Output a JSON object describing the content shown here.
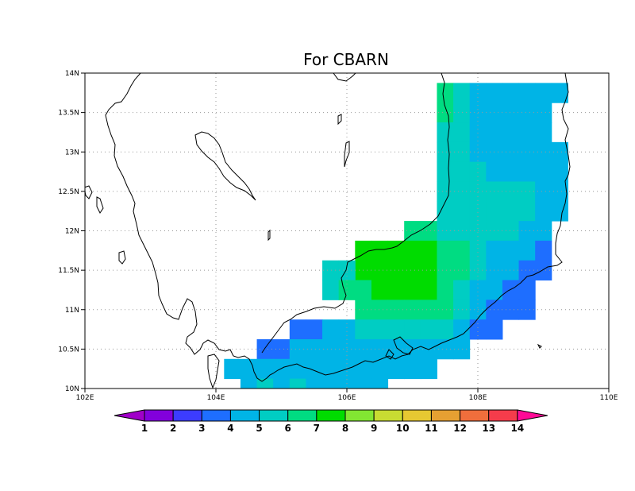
{
  "title": "For CBARN",
  "map": {
    "lon_range": [
      102,
      110
    ],
    "lat_range": [
      10,
      14
    ],
    "x_ticks": [
      {
        "value": 102,
        "label": "102E"
      },
      {
        "value": 104,
        "label": "104E"
      },
      {
        "value": 106,
        "label": "106E"
      },
      {
        "value": 108,
        "label": "108E"
      },
      {
        "value": 110,
        "label": "110E"
      }
    ],
    "y_ticks": [
      {
        "value": 10,
        "label": "10N"
      },
      {
        "value": 10.5,
        "label": "10.5N"
      },
      {
        "value": 11,
        "label": "11N"
      },
      {
        "value": 11.5,
        "label": "11.5N"
      },
      {
        "value": 12,
        "label": "12N"
      },
      {
        "value": 12.5,
        "label": "12.5N"
      },
      {
        "value": 13,
        "label": "13N"
      },
      {
        "value": 13.5,
        "label": "13.5N"
      },
      {
        "value": 14,
        "label": "14N"
      }
    ],
    "grid": "dotted",
    "grid_cell_deg": 0.25,
    "cells": [
      [
        107.5,
        13.75,
        6
      ],
      [
        107.75,
        13.75,
        5
      ],
      [
        108.0,
        13.75,
        4
      ],
      [
        108.25,
        13.75,
        4
      ],
      [
        108.5,
        13.75,
        4
      ],
      [
        108.75,
        13.75,
        4
      ],
      [
        109.0,
        13.75,
        4
      ],
      [
        109.25,
        13.75,
        4
      ],
      [
        107.5,
        13.5,
        6
      ],
      [
        107.75,
        13.5,
        5
      ],
      [
        108.0,
        13.5,
        4
      ],
      [
        108.25,
        13.5,
        4
      ],
      [
        108.5,
        13.5,
        4
      ],
      [
        108.75,
        13.5,
        4
      ],
      [
        109.0,
        13.5,
        4
      ],
      [
        107.5,
        13.25,
        5
      ],
      [
        107.75,
        13.25,
        5
      ],
      [
        108.0,
        13.25,
        4
      ],
      [
        108.25,
        13.25,
        4
      ],
      [
        108.5,
        13.25,
        4
      ],
      [
        108.75,
        13.25,
        4
      ],
      [
        109.0,
        13.25,
        4
      ],
      [
        107.5,
        13.0,
        5
      ],
      [
        107.75,
        13.0,
        5
      ],
      [
        108.0,
        13.0,
        4
      ],
      [
        108.25,
        13.0,
        4
      ],
      [
        108.5,
        13.0,
        4
      ],
      [
        108.75,
        13.0,
        4
      ],
      [
        109.0,
        13.0,
        4
      ],
      [
        109.25,
        13.0,
        4
      ],
      [
        107.5,
        12.75,
        5
      ],
      [
        107.75,
        12.75,
        5
      ],
      [
        108.0,
        12.75,
        5
      ],
      [
        108.25,
        12.75,
        4
      ],
      [
        108.5,
        12.75,
        4
      ],
      [
        108.75,
        12.75,
        4
      ],
      [
        109.0,
        12.75,
        4
      ],
      [
        109.25,
        12.75,
        4
      ],
      [
        107.5,
        12.5,
        5
      ],
      [
        107.75,
        12.5,
        5
      ],
      [
        108.0,
        12.5,
        5
      ],
      [
        108.25,
        12.5,
        5
      ],
      [
        108.5,
        12.5,
        5
      ],
      [
        108.75,
        12.5,
        5
      ],
      [
        109.0,
        12.5,
        4
      ],
      [
        109.25,
        12.5,
        4
      ],
      [
        107.5,
        12.25,
        5
      ],
      [
        107.75,
        12.25,
        5
      ],
      [
        108.0,
        12.25,
        5
      ],
      [
        108.25,
        12.25,
        5
      ],
      [
        108.5,
        12.25,
        5
      ],
      [
        108.75,
        12.25,
        5
      ],
      [
        109.0,
        12.25,
        4
      ],
      [
        109.25,
        12.25,
        4
      ],
      [
        107.0,
        12.0,
        6
      ],
      [
        107.25,
        12.0,
        6
      ],
      [
        107.5,
        12.0,
        5
      ],
      [
        107.75,
        12.0,
        5
      ],
      [
        108.0,
        12.0,
        5
      ],
      [
        108.25,
        12.0,
        5
      ],
      [
        108.5,
        12.0,
        5
      ],
      [
        108.75,
        12.0,
        4
      ],
      [
        109.0,
        12.0,
        4
      ],
      [
        106.25,
        11.75,
        7
      ],
      [
        106.5,
        11.75,
        7
      ],
      [
        106.75,
        11.75,
        7
      ],
      [
        107.0,
        11.75,
        7
      ],
      [
        107.25,
        11.75,
        7
      ],
      [
        107.5,
        11.75,
        6
      ],
      [
        107.75,
        11.75,
        6
      ],
      [
        108.0,
        11.75,
        5
      ],
      [
        108.25,
        11.75,
        4
      ],
      [
        108.5,
        11.75,
        4
      ],
      [
        108.75,
        11.75,
        4
      ],
      [
        109.0,
        11.75,
        3
      ],
      [
        106.25,
        11.5,
        7
      ],
      [
        106.5,
        11.5,
        7
      ],
      [
        106.75,
        11.5,
        7
      ],
      [
        107.0,
        11.5,
        7
      ],
      [
        107.25,
        11.5,
        7
      ],
      [
        107.5,
        11.5,
        6
      ],
      [
        107.75,
        11.5,
        6
      ],
      [
        108.0,
        11.5,
        5
      ],
      [
        108.25,
        11.5,
        4
      ],
      [
        108.5,
        11.5,
        4
      ],
      [
        108.75,
        11.5,
        3
      ],
      [
        109.0,
        11.5,
        3
      ],
      [
        105.75,
        11.5,
        5
      ],
      [
        106.0,
        11.5,
        5
      ],
      [
        105.75,
        11.25,
        5
      ],
      [
        106.0,
        11.25,
        6
      ],
      [
        106.25,
        11.25,
        6
      ],
      [
        106.5,
        11.25,
        7
      ],
      [
        106.75,
        11.25,
        7
      ],
      [
        107.0,
        11.25,
        7
      ],
      [
        107.25,
        11.25,
        7
      ],
      [
        107.5,
        11.25,
        6
      ],
      [
        107.75,
        11.25,
        5
      ],
      [
        108.0,
        11.25,
        4
      ],
      [
        108.25,
        11.25,
        4
      ],
      [
        108.5,
        11.25,
        3
      ],
      [
        108.75,
        11.25,
        3
      ],
      [
        106.25,
        11.0,
        6
      ],
      [
        106.5,
        11.0,
        6
      ],
      [
        106.75,
        11.0,
        6
      ],
      [
        107.0,
        11.0,
        6
      ],
      [
        107.25,
        11.0,
        6
      ],
      [
        107.5,
        11.0,
        6
      ],
      [
        107.75,
        11.0,
        5
      ],
      [
        108.0,
        11.0,
        4
      ],
      [
        108.25,
        11.0,
        3
      ],
      [
        108.5,
        11.0,
        3
      ],
      [
        108.75,
        11.0,
        3
      ],
      [
        105.25,
        10.75,
        3
      ],
      [
        105.5,
        10.75,
        3
      ],
      [
        105.75,
        10.75,
        4
      ],
      [
        106.0,
        10.75,
        4
      ],
      [
        106.25,
        10.75,
        5
      ],
      [
        106.5,
        10.75,
        5
      ],
      [
        106.75,
        10.75,
        5
      ],
      [
        107.0,
        10.75,
        5
      ],
      [
        107.25,
        10.75,
        5
      ],
      [
        107.5,
        10.75,
        5
      ],
      [
        107.75,
        10.75,
        4
      ],
      [
        108.0,
        10.75,
        3
      ],
      [
        108.25,
        10.75,
        3
      ],
      [
        104.75,
        10.5,
        3
      ],
      [
        105.0,
        10.5,
        3
      ],
      [
        105.25,
        10.5,
        4
      ],
      [
        105.5,
        10.5,
        4
      ],
      [
        105.75,
        10.5,
        4
      ],
      [
        106.0,
        10.5,
        4
      ],
      [
        106.25,
        10.5,
        4
      ],
      [
        106.5,
        10.5,
        4
      ],
      [
        106.75,
        10.5,
        4
      ],
      [
        107.0,
        10.5,
        4
      ],
      [
        107.25,
        10.5,
        4
      ],
      [
        107.5,
        10.5,
        4
      ],
      [
        107.75,
        10.5,
        4
      ],
      [
        104.25,
        10.25,
        4
      ],
      [
        104.5,
        10.25,
        4
      ],
      [
        104.75,
        10.25,
        4
      ],
      [
        105.0,
        10.25,
        4
      ],
      [
        105.25,
        10.25,
        4
      ],
      [
        105.5,
        10.25,
        4
      ],
      [
        105.75,
        10.25,
        4
      ],
      [
        106.0,
        10.25,
        4
      ],
      [
        106.25,
        10.25,
        4
      ],
      [
        106.5,
        10.25,
        4
      ],
      [
        106.75,
        10.25,
        4
      ],
      [
        107.0,
        10.25,
        4
      ],
      [
        107.25,
        10.25,
        4
      ],
      [
        104.5,
        10.0,
        4
      ],
      [
        104.75,
        10.0,
        5
      ],
      [
        105.0,
        10.0,
        4
      ],
      [
        105.25,
        10.0,
        5
      ],
      [
        105.5,
        10.0,
        4
      ],
      [
        105.75,
        10.0,
        4
      ],
      [
        106.0,
        10.0,
        4
      ],
      [
        106.25,
        10.0,
        4
      ],
      [
        106.5,
        10.0,
        4
      ]
    ]
  },
  "colorbar": {
    "labels": [
      "1",
      "2",
      "3",
      "4",
      "5",
      "6",
      "7",
      "8",
      "9",
      "10",
      "11",
      "12",
      "13",
      "14"
    ],
    "colors": [
      "#a000c8",
      "#8200dc",
      "#3c3cff",
      "#1e6eff",
      "#00b4e6",
      "#00cdc3",
      "#00dc82",
      "#00dc00",
      "#82e632",
      "#c8dc32",
      "#e6c832",
      "#e6a032",
      "#ef6e3c",
      "#f53c4b",
      "#ff0a96"
    ]
  }
}
